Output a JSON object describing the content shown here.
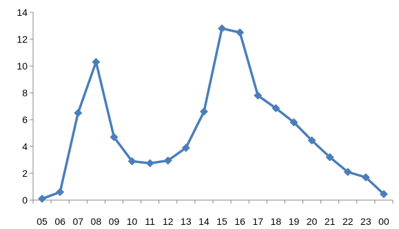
{
  "chart_data": {
    "type": "line",
    "title": "",
    "xlabel": "",
    "ylabel": "",
    "categories": [
      "05",
      "06",
      "07",
      "08",
      "09",
      "10",
      "11",
      "12",
      "13",
      "14",
      "15",
      "16",
      "17",
      "18",
      "19",
      "20",
      "21",
      "22",
      "23",
      "00"
    ],
    "series": [
      {
        "color": "#4a7ebb",
        "marker": "diamond",
        "values": [
          0.1,
          0.6,
          6.5,
          10.3,
          4.7,
          2.9,
          2.75,
          2.95,
          3.9,
          6.6,
          12.8,
          12.5,
          7.8,
          6.85,
          5.8,
          4.45,
          3.2,
          2.1,
          1.7,
          0.45
        ]
      }
    ],
    "ylim": [
      0,
      14
    ],
    "yticks": [
      0,
      2,
      4,
      6,
      8,
      10,
      12,
      14
    ],
    "grid": false,
    "legend": "none"
  }
}
